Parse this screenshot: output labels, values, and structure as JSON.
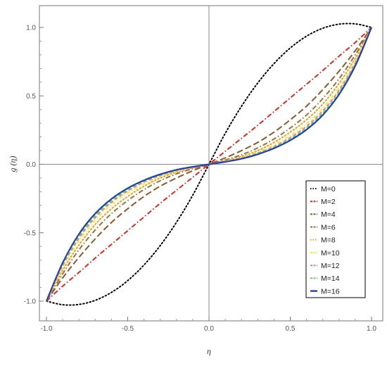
{
  "chart_data": {
    "type": "line",
    "title": "",
    "xlabel": "η",
    "ylabel": "g (η)",
    "xlim": [
      -1.0,
      1.0
    ],
    "ylim": [
      -1.0,
      1.0
    ],
    "x_ticks": [
      "-1.0",
      "-0.5",
      "0.0",
      "0.5",
      "1.0"
    ],
    "y_ticks": [
      "-1.0",
      "-0.5",
      "0.0",
      "0.5",
      "1.0"
    ],
    "grid": false,
    "legend_position": "bottom-right",
    "x": [
      -1.0,
      -0.9,
      -0.8,
      -0.7,
      -0.6,
      -0.5,
      -0.4,
      -0.3,
      -0.2,
      -0.1,
      0.0,
      0.1,
      0.2,
      0.3,
      0.4,
      0.5,
      0.6,
      0.7,
      0.8,
      0.9,
      1.0
    ],
    "series": [
      {
        "name": "M=0",
        "color": "#000000",
        "dash": "dot",
        "values": [
          -1.0,
          -1.026,
          -1.024,
          -0.994,
          -0.936,
          -0.85,
          -0.736,
          -0.594,
          -0.424,
          -0.226,
          0.0,
          0.226,
          0.424,
          0.594,
          0.736,
          0.85,
          0.936,
          0.994,
          1.024,
          1.026,
          1.0
        ]
      },
      {
        "name": "M=2",
        "color": "#e8251e",
        "dash": "dashdot",
        "values": [
          -1.0,
          -0.89,
          -0.79,
          -0.685,
          -0.585,
          -0.485,
          -0.385,
          -0.285,
          -0.19,
          -0.095,
          0.0,
          0.095,
          0.19,
          0.285,
          0.385,
          0.485,
          0.585,
          0.685,
          0.79,
          0.89,
          1.0
        ]
      },
      {
        "name": "M=4",
        "color": "#8b5a2b",
        "dash": "longdash",
        "values": [
          -1.0,
          -0.83,
          -0.68,
          -0.545,
          -0.425,
          -0.325,
          -0.235,
          -0.16,
          -0.1,
          -0.047,
          0.0,
          0.047,
          0.1,
          0.16,
          0.235,
          0.325,
          0.425,
          0.545,
          0.68,
          0.83,
          1.0
        ]
      },
      {
        "name": "M=6",
        "color": "#a0703a",
        "dash": "dashdot",
        "values": [
          -1.0,
          -0.8,
          -0.625,
          -0.48,
          -0.36,
          -0.265,
          -0.185,
          -0.12,
          -0.07,
          -0.032,
          0.0,
          0.032,
          0.07,
          0.12,
          0.185,
          0.265,
          0.36,
          0.48,
          0.625,
          0.8,
          1.0
        ]
      },
      {
        "name": "M=8",
        "color": "#e8a020",
        "dash": "dot",
        "values": [
          -1.0,
          -0.775,
          -0.59,
          -0.44,
          -0.325,
          -0.235,
          -0.16,
          -0.1,
          -0.058,
          -0.026,
          0.0,
          0.026,
          0.058,
          0.1,
          0.16,
          0.235,
          0.325,
          0.44,
          0.59,
          0.775,
          1.0
        ]
      },
      {
        "name": "M=10",
        "color": "#ffe24a",
        "dash": "dotdash",
        "values": [
          -1.0,
          -0.755,
          -0.56,
          -0.41,
          -0.295,
          -0.21,
          -0.143,
          -0.09,
          -0.05,
          -0.022,
          0.0,
          0.022,
          0.05,
          0.09,
          0.143,
          0.21,
          0.295,
          0.41,
          0.56,
          0.755,
          1.0
        ]
      },
      {
        "name": "M=12",
        "color": "#f08080",
        "dash": "dash",
        "values": [
          -1.0,
          -0.74,
          -0.54,
          -0.39,
          -0.278,
          -0.195,
          -0.13,
          -0.082,
          -0.046,
          -0.02,
          0.0,
          0.02,
          0.046,
          0.082,
          0.13,
          0.195,
          0.278,
          0.39,
          0.54,
          0.74,
          1.0
        ]
      },
      {
        "name": "M=14",
        "color": "#5cd65c",
        "dash": "dash",
        "values": [
          -1.0,
          -0.73,
          -0.525,
          -0.375,
          -0.265,
          -0.185,
          -0.123,
          -0.078,
          -0.043,
          -0.019,
          0.0,
          0.019,
          0.043,
          0.078,
          0.123,
          0.185,
          0.265,
          0.375,
          0.525,
          0.73,
          1.0
        ]
      },
      {
        "name": "M=16",
        "color": "#1f3fbf",
        "dash": "solid",
        "values": [
          -1.0,
          -0.72,
          -0.51,
          -0.36,
          -0.253,
          -0.175,
          -0.117,
          -0.073,
          -0.04,
          -0.018,
          0.0,
          0.018,
          0.04,
          0.073,
          0.117,
          0.175,
          0.253,
          0.36,
          0.51,
          0.72,
          1.0
        ]
      }
    ]
  }
}
